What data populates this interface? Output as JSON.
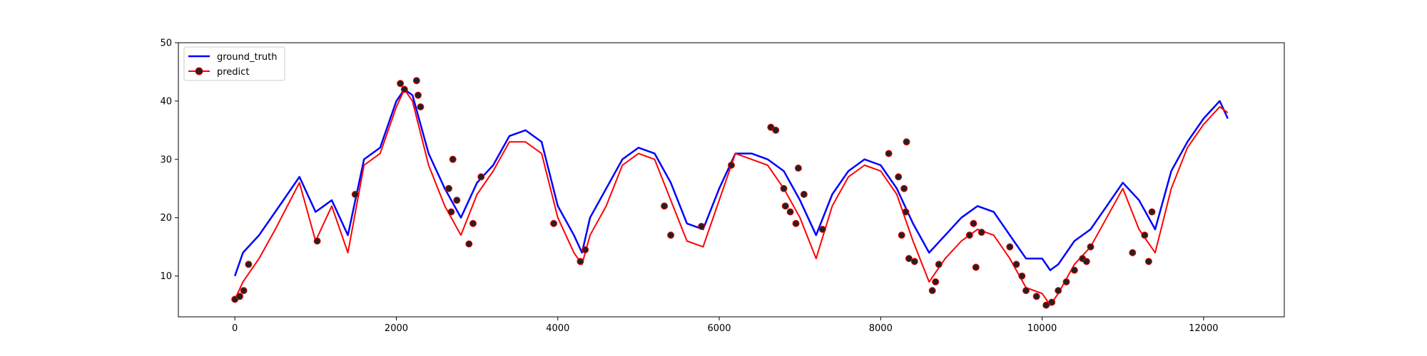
{
  "chart_data": {
    "type": "line",
    "title": "",
    "xlabel": "",
    "ylabel": "",
    "xlim": [
      -700,
      13000
    ],
    "ylim": [
      3,
      50
    ],
    "x_ticks": [
      0,
      2000,
      4000,
      6000,
      8000,
      10000,
      12000
    ],
    "y_ticks": [
      10,
      20,
      30,
      40,
      50
    ],
    "x_tick_labels": [
      "0",
      "2000",
      "4000",
      "6000",
      "8000",
      "10000",
      "12000"
    ],
    "y_tick_labels": [
      "10",
      "20",
      "30",
      "40",
      "50"
    ],
    "grid": false,
    "legend_position": "top-left",
    "series": [
      {
        "name": "ground_truth",
        "color": "#0000ff",
        "marker": "none",
        "x": [
          0,
          100,
          300,
          500,
          800,
          1000,
          1200,
          1400,
          1600,
          1800,
          2000,
          2100,
          2200,
          2400,
          2600,
          2800,
          3000,
          3200,
          3400,
          3600,
          3800,
          4000,
          4200,
          4300,
          4400,
          4600,
          4800,
          5000,
          5200,
          5400,
          5600,
          5800,
          6000,
          6200,
          6400,
          6600,
          6800,
          7000,
          7200,
          7400,
          7600,
          7800,
          8000,
          8200,
          8400,
          8600,
          8800,
          9000,
          9200,
          9400,
          9600,
          9800,
          10000,
          10100,
          10200,
          10400,
          10600,
          10800,
          11000,
          11200,
          11400,
          11600,
          11800,
          12000,
          12200,
          12300
        ],
        "y": [
          10,
          14,
          17,
          21,
          27,
          21,
          23,
          17,
          30,
          32,
          40,
          42,
          41,
          31,
          25,
          20,
          26,
          29,
          34,
          35,
          33,
          22,
          17,
          14,
          20,
          25,
          30,
          32,
          31,
          26,
          19,
          18,
          25,
          31,
          31,
          30,
          28,
          23,
          17,
          24,
          28,
          30,
          29,
          25,
          19,
          14,
          17,
          20,
          22,
          21,
          17,
          13,
          13,
          11,
          12,
          16,
          18,
          22,
          26,
          23,
          18,
          28,
          33,
          37,
          40,
          37
        ]
      },
      {
        "name": "predict",
        "color": "#ff0000",
        "marker": "circle",
        "x": [
          0,
          100,
          300,
          500,
          800,
          1000,
          1200,
          1400,
          1600,
          1800,
          2000,
          2100,
          2200,
          2400,
          2600,
          2800,
          3000,
          3200,
          3400,
          3600,
          3800,
          4000,
          4200,
          4300,
          4400,
          4600,
          4800,
          5000,
          5200,
          5400,
          5600,
          5800,
          6000,
          6200,
          6400,
          6600,
          6800,
          7000,
          7200,
          7400,
          7600,
          7800,
          8000,
          8200,
          8400,
          8600,
          8800,
          9000,
          9200,
          9400,
          9600,
          9800,
          10000,
          10100,
          10200,
          10400,
          10600,
          10800,
          11000,
          11200,
          11400,
          11600,
          11800,
          12000,
          12200,
          12300
        ],
        "y": [
          6,
          9,
          13,
          18,
          26,
          16,
          22,
          14,
          29,
          31,
          39,
          42,
          40,
          29,
          22,
          17,
          24,
          28,
          33,
          33,
          31,
          20,
          14,
          12,
          17,
          22,
          29,
          31,
          30,
          23,
          16,
          15,
          23,
          31,
          30,
          29,
          25,
          20,
          13,
          22,
          27,
          29,
          28,
          24,
          16,
          9,
          13,
          16,
          18,
          17,
          13,
          8,
          7,
          5,
          7,
          12,
          15,
          20,
          25,
          18,
          14,
          25,
          32,
          36,
          39,
          38
        ]
      }
    ],
    "predict_markers": {
      "x": [
        0,
        60,
        110,
        170,
        1020,
        1490,
        2050,
        2100,
        2250,
        2270,
        2300,
        2650,
        2680,
        2700,
        2750,
        2900,
        2950,
        3050,
        3950,
        4280,
        4340,
        5320,
        5400,
        5780,
        6150,
        6640,
        6700,
        6800,
        6820,
        6880,
        6950,
        6980,
        7050,
        7280,
        8100,
        8220,
        8260,
        8290,
        8310,
        8320,
        8350,
        8420,
        8640,
        8680,
        8720,
        9100,
        9150,
        9180,
        9250,
        9600,
        9680,
        9750,
        9800,
        9930,
        10050,
        10120,
        10200,
        10300,
        10400,
        10500,
        10550,
        10600,
        11120,
        11270,
        11320,
        11360
      ],
      "y": [
        6,
        6.5,
        7.5,
        12,
        16,
        24,
        43,
        42,
        43.5,
        41,
        39,
        25,
        21,
        30,
        23,
        15.5,
        19,
        27,
        19,
        12.5,
        14.5,
        22,
        17,
        18.5,
        29,
        35.5,
        35,
        25,
        22,
        21,
        19,
        28.5,
        24,
        18,
        31,
        27,
        17,
        25,
        21,
        33,
        13,
        12.5,
        7.5,
        9,
        12,
        17,
        19,
        11.5,
        17.5,
        15,
        12,
        10,
        7.5,
        6.5,
        5,
        5.5,
        7.5,
        9,
        11,
        13,
        12.5,
        15,
        14,
        17,
        12.5,
        21
      ]
    }
  }
}
